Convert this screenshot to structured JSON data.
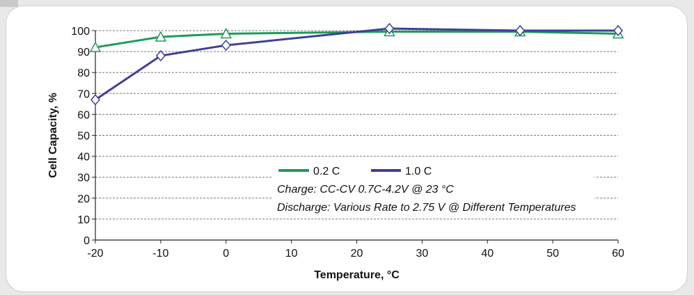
{
  "chart_data": {
    "type": "line",
    "title": "",
    "xlabel": "Temperature, °C",
    "ylabel": "Cell Capacity, %",
    "xlim": [
      -20,
      60
    ],
    "ylim": [
      0,
      100
    ],
    "x_ticks": [
      "-20",
      "-10",
      "0",
      "10",
      "20",
      "30",
      "40",
      "50",
      "60"
    ],
    "y_ticks": [
      "0",
      "10",
      "20",
      "30",
      "40",
      "50",
      "60",
      "70",
      "80",
      "90",
      "100"
    ],
    "grid": "horizontal dashed",
    "legend_position": "center-bottom inside plot",
    "series": [
      {
        "name": "0.2 C",
        "color": "#1e9b5a",
        "marker": "triangle",
        "x": [
          -20,
          -10,
          0,
          25,
          45,
          60
        ],
        "y": [
          92,
          97,
          98.5,
          99.5,
          99.5,
          98.5
        ]
      },
      {
        "name": "1.0 C",
        "color": "#3f3f96",
        "marker": "diamond",
        "x": [
          -20,
          -10,
          0,
          25,
          45,
          60
        ],
        "y": [
          67,
          88,
          93,
          101,
          100,
          100
        ]
      }
    ],
    "annotations": [
      "Charge: CC-CV 0.7C-4.2V @ 23 °C",
      "Discharge: Various Rate to 2.75 V @ Different Temperatures"
    ]
  }
}
